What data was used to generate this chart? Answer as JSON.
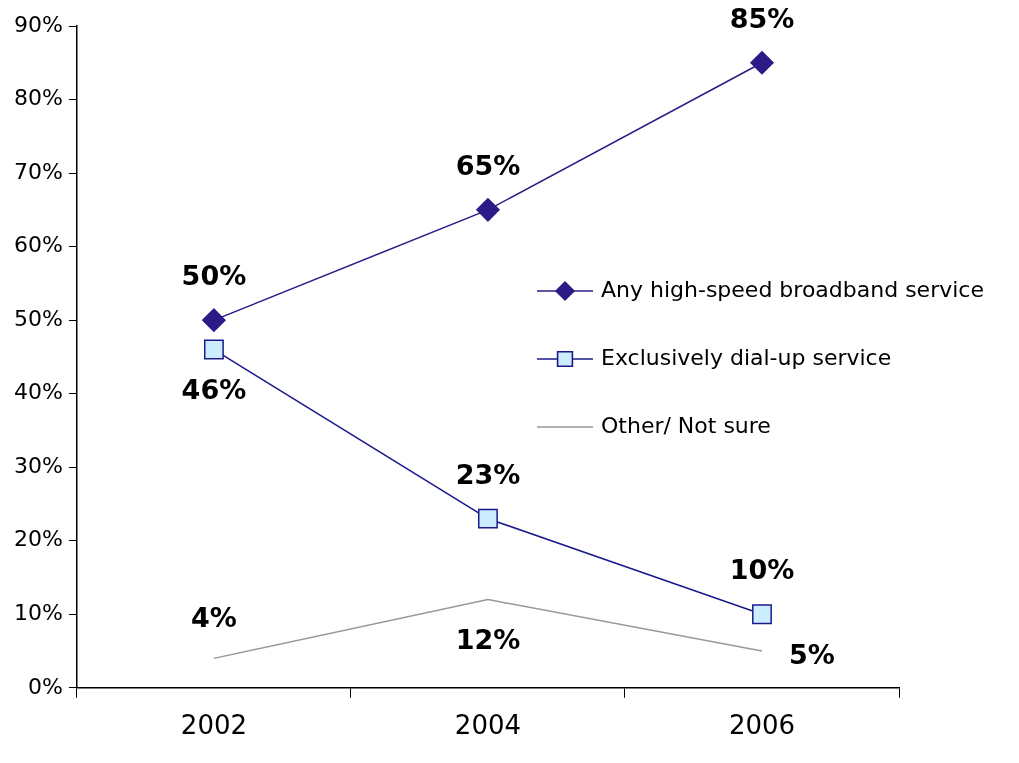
{
  "chart_data": {
    "type": "line",
    "categories": [
      "2002",
      "2004",
      "2006"
    ],
    "series": [
      {
        "name": "Any high-speed broadband service",
        "color": "#2b1b86",
        "marker": "diamond",
        "values": [
          50,
          65,
          85
        ],
        "value_labels": [
          "50%",
          "65%",
          "85%"
        ]
      },
      {
        "name": "Exclusively dial-up service",
        "color": "#1a1a8c",
        "marker": "square",
        "values": [
          46,
          23,
          10
        ],
        "value_labels": [
          "46%",
          "23%",
          "10%"
        ]
      },
      {
        "name": "Other/ Not sure",
        "color": "#999999",
        "marker": "none",
        "values": [
          4,
          12,
          5
        ],
        "value_labels": [
          "4%",
          "12%",
          "5%"
        ]
      }
    ],
    "ylim": [
      0,
      90
    ],
    "yticks": [
      {
        "value": 0,
        "label": "0%"
      },
      {
        "value": 10,
        "label": "10%"
      },
      {
        "value": 20,
        "label": "20%"
      },
      {
        "value": 30,
        "label": "30%"
      },
      {
        "value": 40,
        "label": "40%"
      },
      {
        "value": 50,
        "label": "50%"
      },
      {
        "value": 60,
        "label": "60%"
      },
      {
        "value": 70,
        "label": "70%"
      },
      {
        "value": 80,
        "label": "80%"
      },
      {
        "value": 90,
        "label": "90%"
      }
    ],
    "grid": false,
    "legend": "right",
    "line_style": "solid"
  }
}
